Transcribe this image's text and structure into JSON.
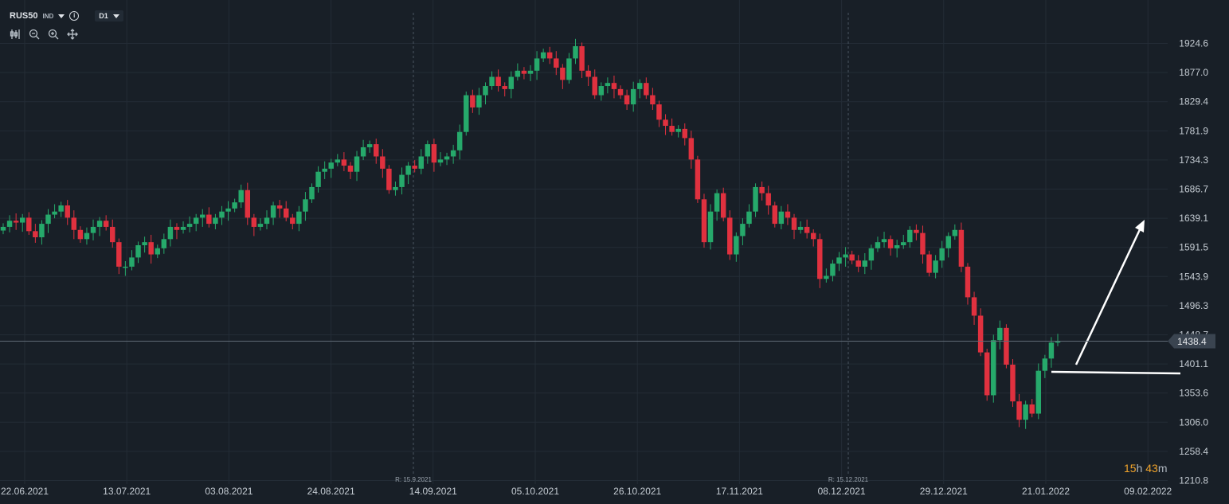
{
  "header": {
    "symbol": "RUS50",
    "type": "IND",
    "info": "i",
    "timeframe": "D1"
  },
  "tools": [
    "candles-icon",
    "zoom-out-icon",
    "zoom-in-icon",
    "move-icon"
  ],
  "countdown": {
    "hours": "15",
    "h": "h",
    "minutes": "43",
    "m": "m"
  },
  "colors": {
    "bg": "#181f27",
    "up": "#26a96b",
    "down": "#e0313f",
    "grid": "#232c36",
    "text": "#c5ccd3"
  },
  "chart_data": {
    "type": "candlestick",
    "timeframe": "D1",
    "current_price": 1438.4,
    "y_ticks": [
      1924.6,
      1877.0,
      1829.4,
      1781.9,
      1734.3,
      1686.7,
      1639.1,
      1591.5,
      1543.9,
      1496.3,
      1448.7,
      1401.1,
      1353.6,
      1306.0,
      1258.4,
      1210.8
    ],
    "x_ticks": [
      "22.06.2021",
      "13.07.2021",
      "03.08.2021",
      "24.08.2021",
      "14.09.2021",
      "05.10.2021",
      "26.10.2021",
      "17.11.2021",
      "08.12.2021",
      "29.12.2021",
      "21.01.2022",
      "09.02.2022"
    ],
    "rollover_markers": [
      "R: 15.9.2021",
      "R: 15.12.2021"
    ],
    "closes": [
      1625,
      1635,
      1632,
      1640,
      1618,
      1608,
      1630,
      1645,
      1650,
      1660,
      1640,
      1620,
      1605,
      1615,
      1625,
      1635,
      1625,
      1600,
      1560,
      1560,
      1575,
      1595,
      1600,
      1580,
      1590,
      1605,
      1625,
      1620,
      1625,
      1630,
      1640,
      1645,
      1630,
      1640,
      1650,
      1655,
      1665,
      1685,
      1640,
      1625,
      1630,
      1640,
      1660,
      1655,
      1640,
      1630,
      1650,
      1670,
      1690,
      1715,
      1720,
      1730,
      1735,
      1725,
      1715,
      1740,
      1755,
      1760,
      1740,
      1720,
      1685,
      1690,
      1710,
      1725,
      1720,
      1740,
      1760,
      1730,
      1735,
      1740,
      1750,
      1780,
      1840,
      1820,
      1840,
      1855,
      1870,
      1855,
      1850,
      1870,
      1880,
      1875,
      1880,
      1900,
      1910,
      1900,
      1885,
      1865,
      1900,
      1920,
      1880,
      1870,
      1840,
      1855,
      1860,
      1850,
      1840,
      1825,
      1850,
      1860,
      1840,
      1825,
      1800,
      1790,
      1780,
      1785,
      1770,
      1735,
      1670,
      1600,
      1650,
      1680,
      1640,
      1580,
      1610,
      1630,
      1650,
      1690,
      1680,
      1660,
      1630,
      1650,
      1640,
      1620,
      1625,
      1615,
      1605,
      1540,
      1545,
      1565,
      1575,
      1580,
      1570,
      1560,
      1570,
      1590,
      1600,
      1605,
      1590,
      1595,
      1600,
      1620,
      1615,
      1580,
      1550,
      1570,
      1590,
      1610,
      1620,
      1560,
      1510,
      1480,
      1420,
      1350,
      1440,
      1460,
      1400,
      1340,
      1310,
      1335,
      1320,
      1390,
      1410,
      1436,
      1438.4
    ]
  }
}
